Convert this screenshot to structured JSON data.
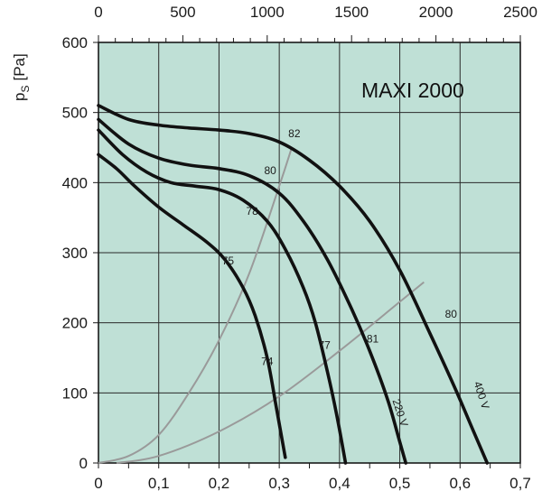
{
  "chart_data": {
    "type": "line",
    "title": "MAXI 2000",
    "ylabel": "p",
    "ylabel_sub": "S",
    "ylabel_unit": "[Pa]",
    "xlim": [
      0,
      0.7
    ],
    "ylim": [
      0,
      600
    ],
    "x2lim": [
      0,
      2500
    ],
    "xticks": [
      0,
      0.1,
      0.2,
      0.3,
      0.4,
      0.5,
      0.6,
      0.7
    ],
    "xtick_labels": [
      "0",
      "0,1",
      "0,2",
      "0,3",
      "0,4",
      "0,5",
      "0,6",
      "0,7"
    ],
    "x2ticks": [
      0,
      500,
      1000,
      1500,
      2000,
      2500
    ],
    "x2tick_labels": [
      "0",
      "500",
      "1000",
      "1500",
      "2000",
      "2500"
    ],
    "yticks": [
      0,
      100,
      200,
      300,
      400,
      500,
      600
    ],
    "ytick_labels": [
      "0",
      "100",
      "200",
      "300",
      "400",
      "500",
      "600"
    ],
    "grid": true,
    "background": "#bfe0d6",
    "fan_color": "#111111",
    "system_color": "#9a9a9a",
    "fan_curves": [
      {
        "x": [
          0,
          0.03,
          0.06,
          0.1,
          0.14,
          0.18,
          0.21,
          0.24,
          0.26,
          0.28,
          0.295,
          0.31
        ],
        "y": [
          440,
          420,
          395,
          365,
          340,
          315,
          290,
          250,
          210,
          150,
          80,
          8
        ]
      },
      {
        "x": [
          0,
          0.04,
          0.08,
          0.12,
          0.16,
          0.2,
          0.24,
          0.28,
          0.31,
          0.34,
          0.36,
          0.38,
          0.395,
          0.41
        ],
        "y": [
          475,
          440,
          415,
          400,
          395,
          390,
          375,
          345,
          305,
          250,
          200,
          130,
          70,
          0
        ]
      },
      {
        "x": [
          0,
          0.05,
          0.1,
          0.15,
          0.2,
          0.25,
          0.3,
          0.34,
          0.38,
          0.42,
          0.45,
          0.48,
          0.5,
          0.51
        ],
        "y": [
          490,
          455,
          435,
          425,
          420,
          410,
          385,
          345,
          290,
          220,
          160,
          90,
          30,
          0
        ]
      },
      {
        "x": [
          0,
          0.05,
          0.1,
          0.15,
          0.2,
          0.25,
          0.3,
          0.35,
          0.4,
          0.45,
          0.5,
          0.55,
          0.59,
          0.62,
          0.645
        ],
        "y": [
          510,
          490,
          482,
          478,
          475,
          470,
          458,
          432,
          395,
          345,
          275,
          185,
          110,
          50,
          0
        ]
      }
    ],
    "system_curves": [
      {
        "x": [
          0,
          0.05,
          0.1,
          0.15,
          0.2,
          0.25,
          0.3,
          0.32
        ],
        "y": [
          0,
          10,
          40,
          100,
          175,
          270,
          395,
          448
        ]
      },
      {
        "x": [
          0.03,
          0.1,
          0.2,
          0.3,
          0.4,
          0.5,
          0.54
        ],
        "y": [
          0,
          10,
          45,
          95,
          160,
          230,
          258
        ]
      }
    ],
    "annotations": [
      {
        "text": "82",
        "x": 0.325,
        "y": 465,
        "rotate": 0
      },
      {
        "text": "80",
        "x": 0.285,
        "y": 412,
        "rotate": 0
      },
      {
        "text": "78",
        "x": 0.255,
        "y": 354,
        "rotate": 0
      },
      {
        "text": "75",
        "x": 0.215,
        "y": 283,
        "rotate": 0
      },
      {
        "text": "74",
        "x": 0.28,
        "y": 140,
        "rotate": 0
      },
      {
        "text": "77",
        "x": 0.375,
        "y": 163,
        "rotate": 0
      },
      {
        "text": "81",
        "x": 0.455,
        "y": 172,
        "rotate": 0
      },
      {
        "text": "80",
        "x": 0.585,
        "y": 207,
        "rotate": 0
      },
      {
        "text": "220 V",
        "x": 0.495,
        "y": 70,
        "rotate": 72
      },
      {
        "text": "400 V",
        "x": 0.63,
        "y": 95,
        "rotate": 72
      }
    ]
  }
}
